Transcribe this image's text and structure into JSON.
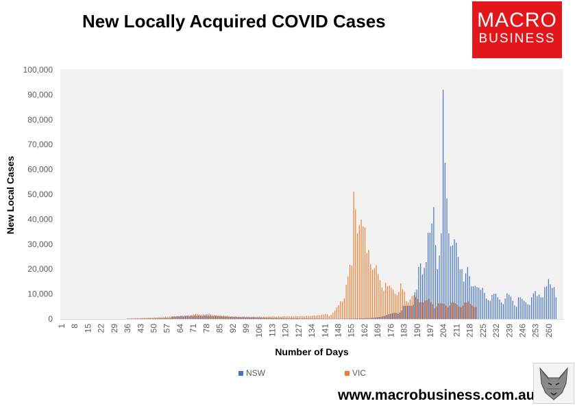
{
  "header": {
    "title": "New Locally Acquired COVID Cases"
  },
  "logo": {
    "line1": "MACRO",
    "line2": "BUSINESS",
    "color": "#e3161b"
  },
  "footer": {
    "url": "www.macrobusiness.com.au"
  },
  "chart_data": {
    "type": "bar",
    "title": "New Locally Acquired COVID Cases",
    "xlabel": "Number of Days",
    "ylabel": "New Local Cases",
    "ylim": [
      0,
      100000
    ],
    "y_tick_labels": [
      "0",
      "10,000",
      "20,000",
      "30,000",
      "40,000",
      "50,000",
      "60,000",
      "70,000",
      "80,000",
      "90,000",
      "100,000"
    ],
    "y_ticks": [
      0,
      10000,
      20000,
      30000,
      40000,
      50000,
      60000,
      70000,
      80000,
      90000,
      100000
    ],
    "x_start": 1,
    "x_ticks": [
      1,
      8,
      15,
      22,
      29,
      36,
      43,
      50,
      57,
      64,
      71,
      78,
      85,
      92,
      99,
      106,
      113,
      120,
      127,
      134,
      141,
      148,
      155,
      162,
      169,
      176,
      183,
      190,
      197,
      204,
      211,
      218,
      225,
      232,
      239,
      246,
      253,
      260
    ],
    "grid": false,
    "legend_position": "bottom",
    "series": [
      {
        "name": "NSW",
        "color": "#4472c4",
        "values": [
          0,
          0,
          0,
          0,
          0,
          0,
          0,
          0,
          0,
          0,
          0,
          0,
          0,
          0,
          0,
          0,
          0,
          0,
          0,
          0,
          0,
          0,
          0,
          0,
          0,
          0,
          0,
          0,
          0,
          0,
          0,
          0,
          0,
          0,
          0,
          50,
          80,
          60,
          100,
          90,
          120,
          150,
          110,
          170,
          200,
          150,
          220,
          250,
          200,
          270,
          300,
          250,
          320,
          350,
          300,
          370,
          400,
          350,
          420,
          900,
          1000,
          950,
          1100,
          1050,
          1200,
          1000,
          1150,
          1250,
          1100,
          1300,
          1200,
          1350,
          1250,
          1400,
          1300,
          1200,
          1350,
          1400,
          1250,
          1300,
          1200,
          1100,
          1250,
          1150,
          1050,
          1100,
          1000,
          950,
          1000,
          900,
          850,
          900,
          800,
          850,
          750,
          800,
          700,
          750,
          650,
          700,
          650,
          600,
          700,
          650,
          600,
          550,
          600,
          500,
          550,
          500,
          450,
          500,
          450,
          400,
          450,
          400,
          350,
          400,
          350,
          300,
          350,
          300,
          250,
          300,
          250,
          300,
          250,
          200,
          250,
          200,
          250,
          200,
          150,
          200,
          150,
          200,
          150,
          150,
          100,
          150,
          100,
          150,
          100,
          100,
          150,
          100,
          100,
          100,
          150,
          100,
          100,
          150,
          100,
          150,
          200,
          150,
          200,
          250,
          200,
          300,
          250,
          300,
          350,
          400,
          350,
          450,
          500,
          600,
          700,
          800,
          900,
          1100,
          1300,
          1600,
          1900,
          2100,
          2300,
          2500,
          2400,
          2200,
          2600,
          3500,
          5300,
          5300,
          5300,
          5300,
          5300,
          5600,
          10800,
          11700,
          20900,
          22300,
          17900,
          20500,
          22800,
          34600,
          34600,
          38300,
          44900,
          29600,
          20000,
          25500,
          34400,
          92000,
          62700,
          48400,
          34400,
          29200,
          29500,
          32000,
          30600,
          24900,
          19900,
          20100,
          15000,
          18300,
          20800,
          17200,
          13100,
          13100,
          13300,
          12800,
          12600,
          11700,
          12500,
          10500,
          8200,
          7600,
          7300,
          9600,
          10100,
          10100,
          8700,
          7800,
          6600,
          5900,
          8200,
          10300,
          9800,
          8900,
          7300,
          5500,
          4900,
          8700,
          8700,
          8100,
          7300,
          6700,
          5900,
          5700,
          8700,
          10300,
          11200,
          9200,
          9800,
          8700,
          8700,
          12800,
          13100,
          16000,
          13900,
          12500,
          12800,
          8700
        ]
      },
      {
        "name": "VIC",
        "color": "#ed7d31",
        "values": [
          0,
          0,
          0,
          0,
          0,
          0,
          0,
          0,
          0,
          0,
          0,
          0,
          0,
          0,
          0,
          0,
          0,
          0,
          0,
          0,
          0,
          0,
          0,
          0,
          0,
          0,
          0,
          0,
          0,
          0,
          0,
          0,
          0,
          0,
          0,
          300,
          250,
          350,
          300,
          400,
          350,
          300,
          450,
          400,
          500,
          450,
          550,
          500,
          600,
          650,
          600,
          700,
          750,
          700,
          800,
          900,
          850,
          1000,
          950,
          1100,
          1000,
          1200,
          1150,
          1300,
          1250,
          1400,
          1350,
          1500,
          1450,
          1600,
          1900,
          2100,
          2000,
          1800,
          1700,
          1900,
          1800,
          2000,
          2100,
          1900,
          1700,
          1600,
          1500,
          1400,
          1500,
          1300,
          1400,
          1200,
          1300,
          1100,
          1100,
          1000,
          1050,
          950,
          1000,
          900,
          950,
          1000,
          900,
          950,
          850,
          900,
          950,
          850,
          900,
          1000,
          900,
          950,
          850,
          900,
          1000,
          950,
          1100,
          1000,
          900,
          1050,
          950,
          1000,
          1100,
          1000,
          1150,
          1050,
          1100,
          1000,
          1200,
          1100,
          1050,
          1150,
          1200,
          1100,
          1300,
          1250,
          1200,
          1350,
          1400,
          1300,
          1500,
          1450,
          1700,
          1800,
          2000,
          1900,
          1200,
          1700,
          2600,
          3300,
          4700,
          5500,
          7100,
          6900,
          8300,
          13700,
          17200,
          21800,
          21500,
          51100,
          44000,
          34400,
          37700,
          39900,
          37000,
          36700,
          26400,
          27800,
          22000,
          19800,
          20300,
          21600,
          18000,
          15600,
          12700,
          11300,
          14500,
          13100,
          13400,
          12500,
          11800,
          10100,
          9600,
          10900,
          14300,
          11900,
          10900,
          7200,
          6700,
          7900,
          9300,
          9500,
          8800,
          8100,
          6700,
          6700,
          6700,
          7400,
          7600,
          8100,
          6600,
          5900,
          4300,
          5000,
          6300,
          6300,
          6300,
          6100,
          5400,
          4800,
          5400,
          6600,
          6700,
          6300,
          5700,
          4900,
          4800,
          5300,
          6600,
          6600,
          7200,
          6100,
          5500,
          4800,
          4800
        ]
      }
    ]
  }
}
